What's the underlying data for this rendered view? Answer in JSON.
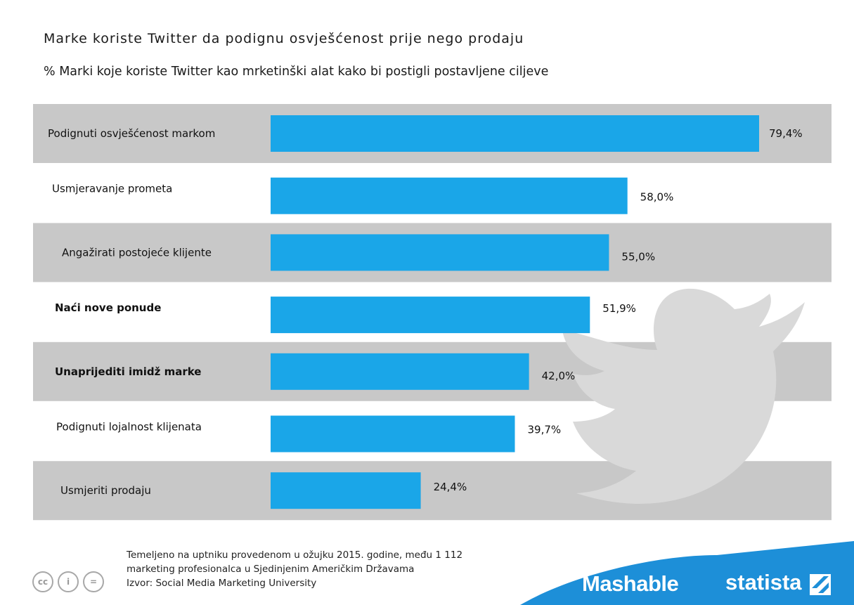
{
  "title": "Marke koriste Twitter da podignu osvješćenost prije nego prodaju",
  "subtitle": "% Marki koje koriste Twitter kao mrketinški alat kako bi postigli postavljene ciljeve",
  "chart_data": {
    "type": "bar",
    "orientation": "horizontal",
    "categories": [
      "Podignuti osvješćenost markom",
      "Usmjeravanje prometa",
      "Angažirati postojeće klijente",
      "Naći nove ponude",
      "Unaprijediti imidž marke",
      "Podignuti lojalnost klijenata",
      "Usmjeriti prodaju"
    ],
    "values": [
      79.4,
      58.0,
      55.0,
      51.9,
      42.0,
      39.7,
      24.4
    ],
    "value_labels": [
      "79,4%",
      "58,0%",
      "55,0%",
      "51,9%",
      "42,0%",
      "39,7%",
      "24,4%"
    ],
    "bold_categories": [
      false,
      false,
      false,
      true,
      true,
      false,
      false
    ],
    "xlim": [
      0,
      80
    ],
    "bar_color": "#1aa6e8",
    "row_shade_color": "#c8c8c8",
    "grid": false
  },
  "footer": {
    "note_lines": [
      "Temeljeno na uptniku provedenom u ožujku 2015. godine, među 1 112",
      "marketing profesionalca u Sjedinjenim Američkim Državama",
      "Izvor:  Social Media Marketing University"
    ],
    "license_icons": [
      "cc-icon",
      "by-icon",
      "nd-icon"
    ],
    "license_icon_glyphs": [
      "cc",
      "i",
      "="
    ],
    "brand_mashable": "Mashable",
    "brand_statista": "statista",
    "brand_color": "#1d8fd8"
  },
  "decor": {
    "watermark_icon": "twitter-bird-icon",
    "watermark_color": "#d9d9d9"
  }
}
